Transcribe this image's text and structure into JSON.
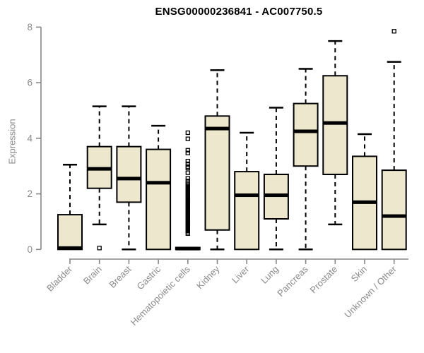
{
  "chart_data": {
    "type": "boxplot",
    "title": "ENSG00000236841 - AC007750.5",
    "ylabel": "Expression",
    "xlabel": "",
    "ylim": [
      0,
      8
    ],
    "yticks": [
      0,
      2,
      4,
      6,
      8
    ],
    "grid": false,
    "legend": "none",
    "categories": [
      "Bladder",
      "Brain",
      "Breast",
      "Gastric",
      "Hematopoietic cells",
      "Kidney",
      "Liver",
      "Lung",
      "Pancreas",
      "Prostate",
      "Skin",
      "Unknown / Other"
    ],
    "series": [
      {
        "label": "Bladder",
        "whisker_low": 0,
        "q1": 0,
        "median": 0.05,
        "q3": 1.25,
        "whisker_high": 3.05,
        "outliers": []
      },
      {
        "label": "Brain",
        "whisker_low": 0.9,
        "q1": 2.2,
        "median": 2.9,
        "q3": 3.7,
        "whisker_high": 5.15,
        "outliers": [
          0.05
        ]
      },
      {
        "label": "Breast",
        "whisker_low": 0,
        "q1": 1.7,
        "median": 2.55,
        "q3": 3.7,
        "whisker_high": 5.15,
        "outliers": []
      },
      {
        "label": "Gastric",
        "whisker_low": 0,
        "q1": 0,
        "median": 2.4,
        "q3": 3.6,
        "whisker_high": 4.45,
        "outliers": []
      },
      {
        "label": "Hematopoietic cells",
        "whisker_low": 0,
        "q1": 0,
        "median": 0.03,
        "q3": 0.07,
        "whisker_high": 0.07,
        "outliers": [
          4.2,
          3.98,
          3.57,
          3.47,
          3.18,
          3.08,
          2.98,
          2.93,
          2.76,
          2.56,
          2.46,
          2.37,
          2.32,
          2.27,
          2.22,
          2.17,
          2.12,
          2.07,
          2.02,
          1.97,
          1.92,
          1.87,
          1.82,
          1.77,
          1.72,
          1.67,
          1.62,
          1.57,
          1.52,
          1.47,
          1.42,
          1.37,
          1.32,
          1.27,
          1.22,
          1.17,
          1.12,
          1.07,
          1.02,
          0.97,
          0.92,
          0.87,
          0.82,
          0.77,
          0.72,
          0.67,
          0.62,
          0.57
        ]
      },
      {
        "label": "Kidney",
        "whisker_low": 0,
        "q1": 0.7,
        "median": 4.35,
        "q3": 4.8,
        "whisker_high": 6.45,
        "outliers": []
      },
      {
        "label": "Liver",
        "whisker_low": 0,
        "q1": 0,
        "median": 1.95,
        "q3": 2.8,
        "whisker_high": 4.2,
        "outliers": []
      },
      {
        "label": "Lung",
        "whisker_low": 0,
        "q1": 1.1,
        "median": 1.95,
        "q3": 2.7,
        "whisker_high": 5.1,
        "outliers": []
      },
      {
        "label": "Pancreas",
        "whisker_low": 0,
        "q1": 3.0,
        "median": 4.25,
        "q3": 5.25,
        "whisker_high": 6.5,
        "outliers": []
      },
      {
        "label": "Prostate",
        "whisker_low": 0.9,
        "q1": 2.7,
        "median": 4.55,
        "q3": 6.25,
        "whisker_high": 7.5,
        "outliers": []
      },
      {
        "label": "Skin",
        "whisker_low": 0,
        "q1": 0,
        "median": 1.7,
        "q3": 3.35,
        "whisker_high": 4.15,
        "outliers": []
      },
      {
        "label": "Unknown / Other",
        "whisker_low": 0,
        "q1": 0,
        "median": 1.2,
        "q3": 2.85,
        "whisker_high": 6.75,
        "outliers": [
          7.85
        ]
      }
    ],
    "colors": {
      "box_fill": "#ede7ce",
      "box_stroke": "#000000",
      "median": "#000000",
      "whisker": "#000000",
      "outlier_stroke": "#000000",
      "axis": "#878787",
      "tick_label": "#8a8a8a",
      "title": "#000000",
      "background": "#ffffff"
    }
  }
}
